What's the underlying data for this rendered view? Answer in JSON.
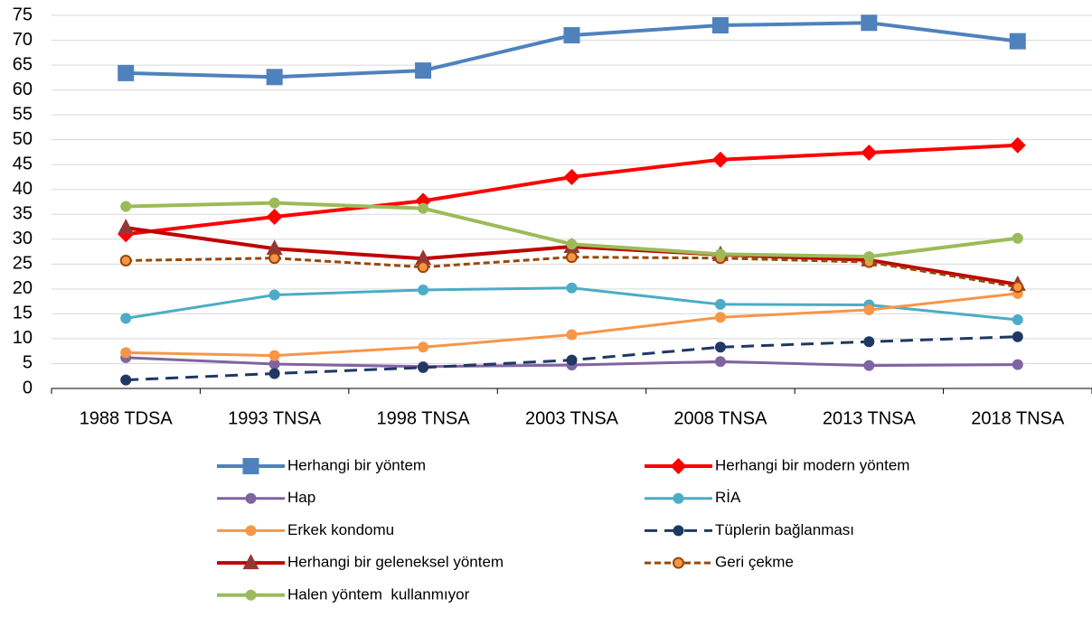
{
  "chart_data": {
    "type": "line",
    "categories": [
      "1988 TDSA",
      "1993 TNSA",
      "1998 TNSA",
      "2003 TNSA",
      "2008 TNSA",
      "2013 TNSA",
      "2018 TNSA"
    ],
    "ylim": [
      0,
      75
    ],
    "yticks": [
      0,
      5,
      10,
      15,
      20,
      25,
      30,
      35,
      40,
      45,
      50,
      55,
      60,
      65,
      70,
      75
    ],
    "grid": true,
    "legend": "bottom",
    "series": [
      {
        "name": "Herhangi bir yöntem",
        "color": "#4f81bd",
        "marker": "square",
        "dash": "solid",
        "line_width": 4,
        "values": [
          63.4,
          62.6,
          63.9,
          71.0,
          73.0,
          73.5,
          69.8
        ]
      },
      {
        "name": "Herhangi bir modern yöntem",
        "color": "#ff0000",
        "marker": "diamond",
        "dash": "solid",
        "line_width": 4,
        "values": [
          31.0,
          34.5,
          37.7,
          42.5,
          46.0,
          47.4,
          48.9
        ]
      },
      {
        "name": "Hap",
        "color": "#8064a2",
        "marker": "circle",
        "dash": "solid",
        "line_width": 3,
        "values": [
          6.2,
          4.9,
          4.4,
          4.7,
          5.4,
          4.6,
          4.8
        ]
      },
      {
        "name": "RİA",
        "color": "#4bacc6",
        "marker": "circle",
        "dash": "solid",
        "line_width": 3,
        "values": [
          14.1,
          18.8,
          19.8,
          20.2,
          16.9,
          16.8,
          13.8
        ]
      },
      {
        "name": "Erkek kondomu",
        "color": "#f79646",
        "marker": "circle",
        "dash": "solid",
        "line_width": 3,
        "values": [
          7.2,
          6.6,
          8.3,
          10.8,
          14.3,
          15.8,
          19.1
        ]
      },
      {
        "name": "Tüplerin bağlanması",
        "color": "#1f3864",
        "marker": "circle",
        "dash": "dashed",
        "line_width": 3,
        "values": [
          1.7,
          3.0,
          4.2,
          5.7,
          8.3,
          9.4,
          10.4
        ]
      },
      {
        "name": "Herhangi bir geleneksel yöntem",
        "color": "#c00000",
        "marker": "triangle",
        "dash": "solid",
        "line_width": 4,
        "values": [
          32.3,
          28.1,
          26.1,
          28.5,
          26.9,
          25.8,
          20.9
        ]
      },
      {
        "name": "Geri çekme",
        "color": "#984807",
        "marker": "circle-orange",
        "dash": "dotted",
        "line_width": 3,
        "values": [
          25.7,
          26.2,
          24.4,
          26.4,
          26.2,
          25.4,
          20.4
        ]
      },
      {
        "name": "Halen yöntem  kullanmıyor",
        "color": "#9bbb59",
        "marker": "circle",
        "dash": "solid",
        "line_width": 4,
        "values": [
          36.6,
          37.3,
          36.2,
          29.0,
          27.0,
          26.5,
          30.2
        ]
      }
    ]
  }
}
